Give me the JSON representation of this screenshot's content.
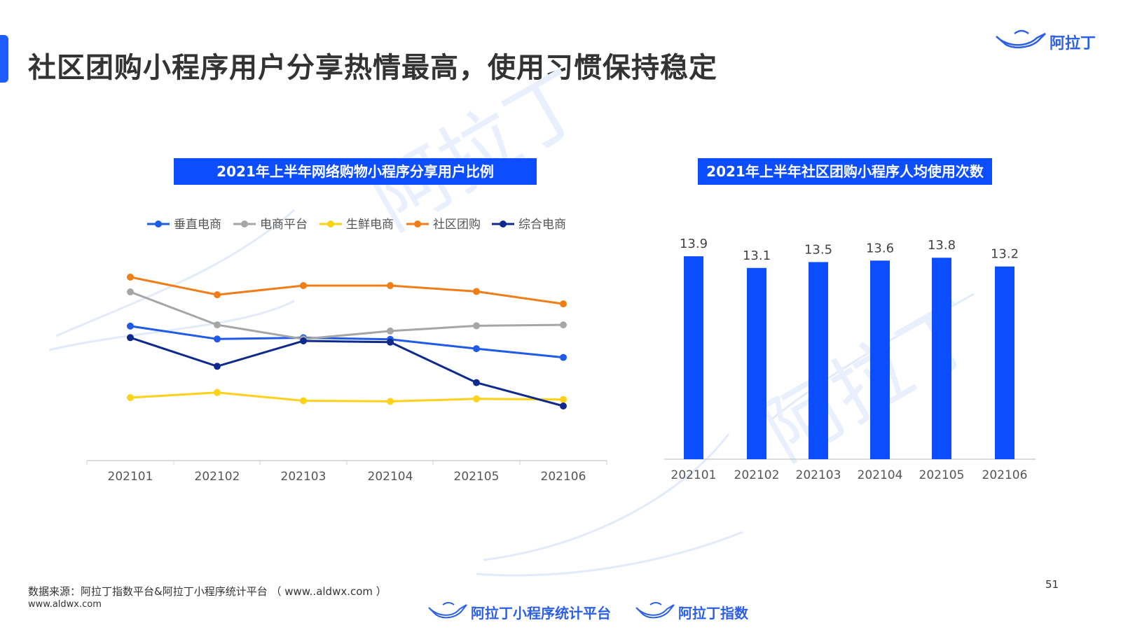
{
  "page": {
    "title": "社区团购小程序用户分享热情最高，使用习惯保持稳定",
    "brand": "阿拉丁",
    "page_number": "51"
  },
  "footer": {
    "source": "数据来源：阿拉丁指数平台&阿拉丁小程序统计平台 （ www..aldwx.com ）",
    "url": "www.aldwx.com",
    "brand1": "阿拉丁小程序统计平台",
    "brand2": "阿拉丁指数"
  },
  "chart_data": [
    {
      "type": "line",
      "title": "2021年上半年网络购物小程序分享用户比例",
      "categories": [
        "202101",
        "202102",
        "202103",
        "202104",
        "202105",
        "202106"
      ],
      "legend_position": "top",
      "ylim": [
        0,
        100
      ],
      "series": [
        {
          "name": "垂直电商",
          "color": "#1f5ae8",
          "values": [
            68.5,
            60.3,
            61.1,
            60.1,
            54.2,
            48.6
          ]
        },
        {
          "name": "电商平台",
          "color": "#a6a6a6",
          "values": [
            90.2,
            69.3,
            60.3,
            65.4,
            68.7,
            69.3
          ]
        },
        {
          "name": "生鲜电商",
          "color": "#ffd21a",
          "values": [
            23.1,
            26.3,
            21.1,
            20.7,
            22.3,
            21.9
          ]
        },
        {
          "name": "社区团购",
          "color": "#f07d17",
          "values": [
            99.6,
            88.4,
            94.2,
            94.2,
            90.5,
            82.6
          ]
        },
        {
          "name": "综合电商",
          "color": "#0e2a8c",
          "values": [
            61.2,
            43.0,
            59.1,
            58.3,
            32.6,
            17.8
          ]
        }
      ]
    },
    {
      "type": "bar",
      "title": "2021年上半年社区团购小程序人均使用次数",
      "categories": [
        "202101",
        "202102",
        "202103",
        "202104",
        "202105",
        "202106"
      ],
      "values": [
        13.9,
        13.1,
        13.5,
        13.6,
        13.8,
        13.2
      ],
      "ylim": [
        0,
        14
      ],
      "color": "#0b4dff"
    }
  ]
}
